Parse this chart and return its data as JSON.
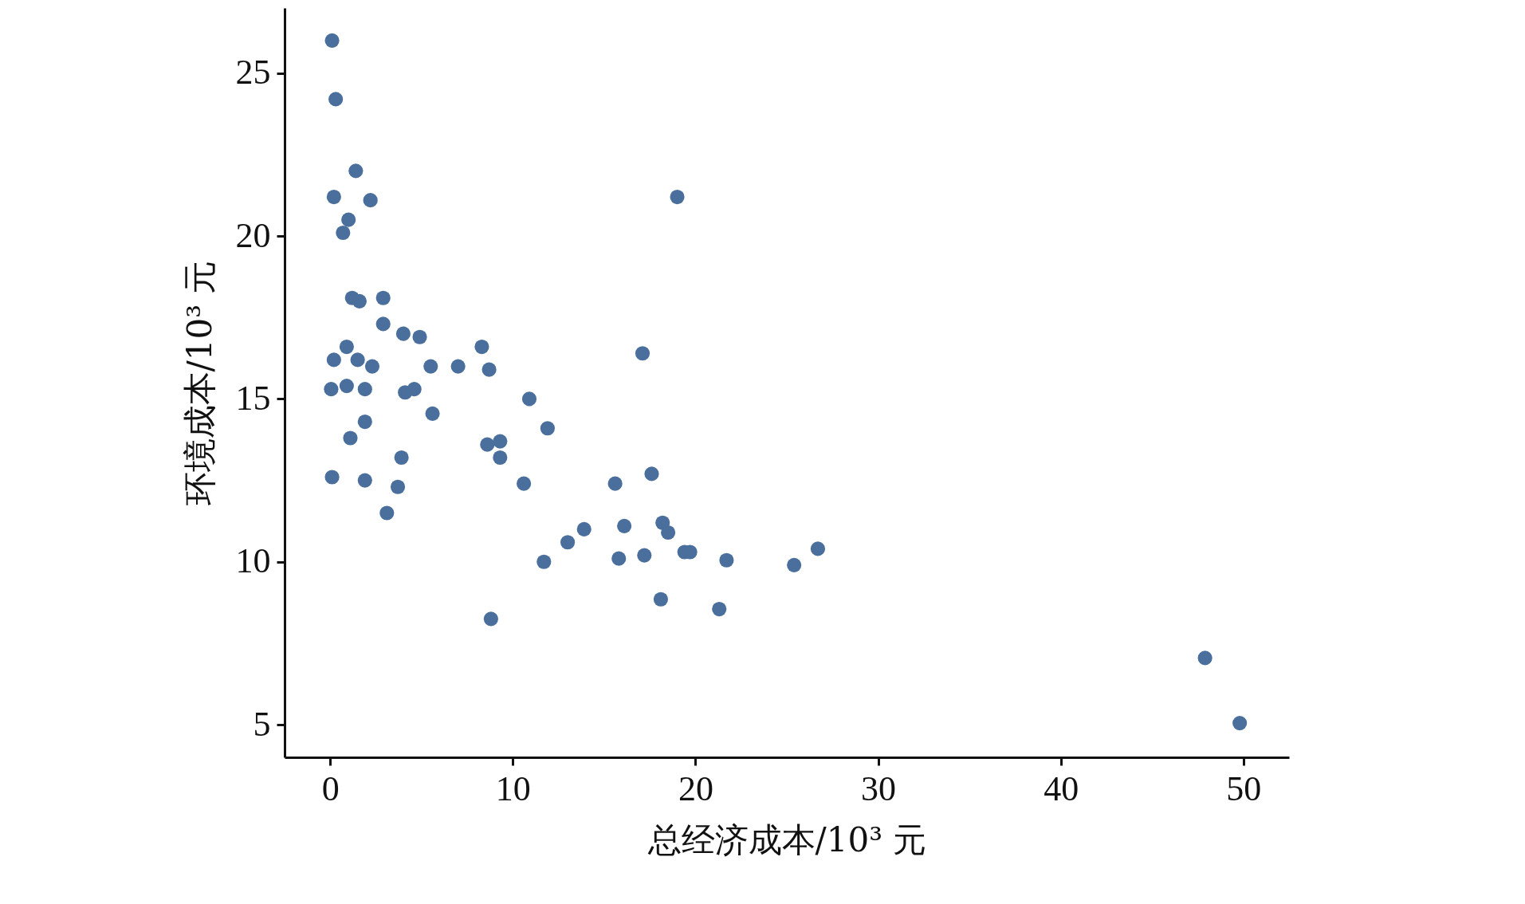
{
  "chart_data": {
    "type": "scatter",
    "xlabel": "总经济成本/10³ 元",
    "ylabel": "环境成本/10³ 元",
    "xlim": [
      -2.5,
      52.5
    ],
    "ylim": [
      4,
      27
    ],
    "xticks": [
      0,
      10,
      20,
      30,
      40,
      50
    ],
    "yticks": [
      5,
      10,
      15,
      20,
      25
    ],
    "grid": false,
    "marker": "circle",
    "series": [
      {
        "color": "#4a6f9c",
        "x": [
          0.1,
          0.3,
          1.4,
          0.2,
          2.2,
          1.0,
          0.7,
          19.0,
          1.2,
          1.6,
          2.9,
          2.9,
          4.0,
          4.9,
          8.3,
          0.9,
          0.2,
          1.5,
          2.3,
          5.5,
          7.0,
          8.7,
          17.1,
          0.05,
          0.9,
          1.9,
          4.1,
          4.6,
          10.9,
          5.6,
          1.9,
          11.9,
          1.1,
          3.9,
          8.6,
          9.3,
          9.3,
          0.1,
          1.9,
          3.7,
          3.1,
          10.6,
          15.6,
          17.6,
          13.9,
          13.0,
          11.7,
          16.1,
          18.2,
          18.5,
          15.8,
          17.2,
          19.4,
          19.7,
          21.7,
          25.4,
          26.7,
          8.8,
          18.1,
          21.3,
          47.9,
          49.8
        ],
        "values": [
          26.0,
          24.2,
          22.0,
          21.2,
          21.1,
          20.5,
          20.1,
          21.2,
          18.1,
          18.0,
          18.1,
          17.3,
          17.0,
          16.9,
          16.6,
          16.6,
          16.2,
          16.2,
          16.0,
          16.0,
          16.0,
          15.9,
          16.4,
          15.3,
          15.4,
          15.3,
          15.2,
          15.3,
          15.0,
          14.55,
          14.3,
          14.1,
          13.8,
          13.2,
          13.6,
          13.7,
          13.2,
          12.6,
          12.5,
          12.3,
          11.5,
          12.4,
          12.4,
          12.7,
          11.0,
          10.6,
          10.0,
          11.1,
          11.2,
          10.9,
          10.1,
          10.2,
          10.3,
          10.3,
          10.05,
          9.9,
          10.4,
          8.25,
          8.85,
          8.55,
          7.05,
          5.05
        ]
      }
    ]
  }
}
